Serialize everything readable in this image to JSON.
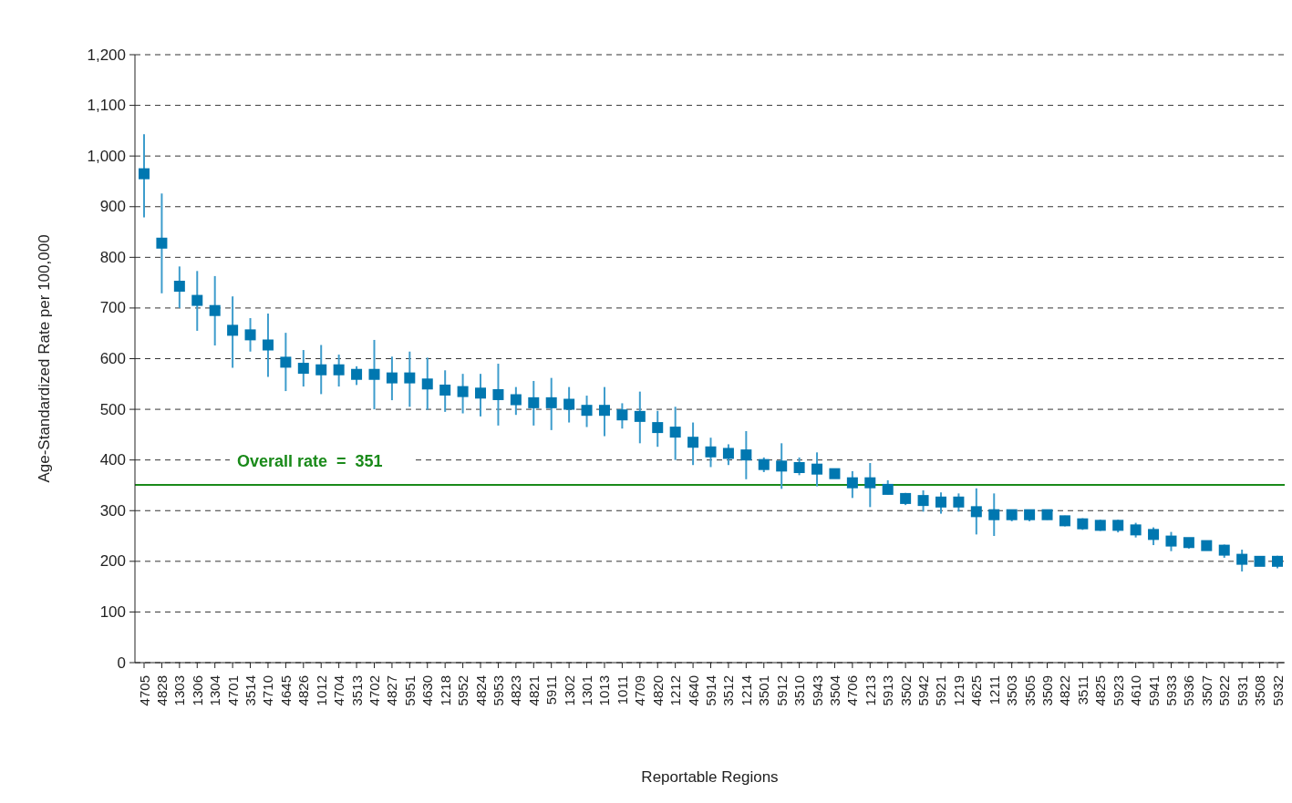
{
  "chart_data": {
    "type": "scatter",
    "xlabel": "Reportable Regions",
    "ylabel": "Age-Standardized Rate per 100,000",
    "categories": [
      "4705",
      "4828",
      "1303",
      "1306",
      "1304",
      "4701",
      "3514",
      "4710",
      "4645",
      "4826",
      "1012",
      "4704",
      "3513",
      "4702",
      "4827",
      "5951",
      "4630",
      "1218",
      "5952",
      "4824",
      "5953",
      "4823",
      "4821",
      "5911",
      "1302",
      "1301",
      "1013",
      "1011",
      "4709",
      "4820",
      "1212",
      "4640",
      "5914",
      "3512",
      "1214",
      "3501",
      "5912",
      "3510",
      "5943",
      "3504",
      "4706",
      "1213",
      "5913",
      "3502",
      "5942",
      "5921",
      "1219",
      "4625",
      "1211",
      "3503",
      "3505",
      "3509",
      "4822",
      "3511",
      "4825",
      "5923",
      "4610",
      "5941",
      "5933",
      "5936",
      "3507",
      "5922",
      "5931",
      "3508",
      "5932"
    ],
    "series": [
      {
        "color": "#0077b0",
        "values": [
          965,
          828,
          743,
          715,
          695,
          656,
          647,
          627,
          593,
          581,
          578,
          578,
          569,
          569,
          562,
          562,
          550,
          538,
          535,
          532,
          529,
          519,
          513,
          513,
          510,
          498,
          498,
          489,
          486,
          464,
          455,
          435,
          416,
          413,
          410,
          391,
          388,
          385,
          382,
          373,
          355,
          355,
          342,
          324,
          320,
          317,
          317,
          298,
          292,
          292,
          292,
          292,
          280,
          274,
          271,
          271,
          262,
          253,
          240,
          237,
          231,
          222,
          204,
          200,
          200
        ],
        "errors": [
          [
            879,
            1043
          ],
          [
            729,
            926
          ],
          [
            700,
            782
          ],
          [
            655,
            773
          ],
          [
            626,
            763
          ],
          [
            582,
            723
          ],
          [
            614,
            680
          ],
          [
            564,
            689
          ],
          [
            536,
            651
          ],
          [
            545,
            617
          ],
          [
            530,
            627
          ],
          [
            545,
            608
          ],
          [
            548,
            585
          ],
          [
            500,
            637
          ],
          [
            518,
            604
          ],
          [
            505,
            614
          ],
          [
            499,
            602
          ],
          [
            495,
            577
          ],
          [
            492,
            570
          ],
          [
            486,
            570
          ],
          [
            468,
            590
          ],
          [
            489,
            544
          ],
          [
            468,
            556
          ],
          [
            459,
            562
          ],
          [
            474,
            544
          ],
          [
            465,
            527
          ],
          [
            447,
            544
          ],
          [
            462,
            512
          ],
          [
            433,
            535
          ],
          [
            426,
            497
          ],
          [
            400,
            505
          ],
          [
            390,
            474
          ],
          [
            386,
            444
          ],
          [
            390,
            431
          ],
          [
            362,
            457
          ],
          [
            376,
            405
          ],
          [
            343,
            433
          ],
          [
            370,
            405
          ],
          [
            348,
            415
          ],
          [
            367,
            379
          ],
          [
            325,
            378
          ],
          [
            307,
            394
          ],
          [
            332,
            360
          ],
          [
            311,
            335
          ],
          [
            298,
            340
          ],
          [
            294,
            336
          ],
          [
            298,
            334
          ],
          [
            253,
            344
          ],
          [
            250,
            334
          ],
          [
            279,
            302
          ],
          [
            279,
            302
          ],
          [
            282,
            299
          ],
          [
            269,
            290
          ],
          [
            262,
            285
          ],
          [
            260,
            282
          ],
          [
            257,
            282
          ],
          [
            247,
            276
          ],
          [
            232,
            267
          ],
          [
            220,
            258
          ],
          [
            225,
            244
          ],
          [
            225,
            237
          ],
          [
            207,
            233
          ],
          [
            180,
            223
          ],
          [
            195,
            204
          ],
          [
            186,
            211
          ]
        ]
      }
    ],
    "marker": "square",
    "ylim": [
      0,
      1200
    ],
    "yticks": [
      0,
      {
        "value": 100,
        "label": "100"
      },
      {
        "value": 200,
        "label": "200"
      },
      {
        "value": 300,
        "label": "300"
      },
      {
        "value": 400,
        "label": "400"
      },
      {
        "value": 500,
        "label": "500"
      },
      {
        "value": 600,
        "label": "600"
      },
      {
        "value": 700,
        "label": "700"
      },
      {
        "value": 800,
        "label": "800"
      },
      {
        "value": 900,
        "label": "900"
      },
      {
        "value": 1000,
        "label": "1,000"
      },
      {
        "value": 1100,
        "label": "1,100"
      },
      {
        "value": 1200,
        "label": "1,200"
      }
    ],
    "ref_lines": [
      {
        "axis": "y",
        "value": 351,
        "label": "Overall rate  =  351",
        "color": "#1a8a1a"
      }
    ],
    "grid": "y"
  }
}
